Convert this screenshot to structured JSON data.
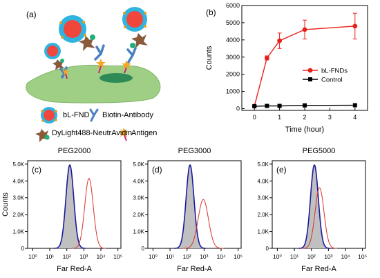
{
  "panel_labels": {
    "a": "(a)",
    "b": "(b)",
    "c": "(c)",
    "d": "(d)",
    "e": "(e)"
  },
  "legend_a": {
    "bl_fnd": "bL-FND",
    "biotin_antibody": "Biotin-Antibody",
    "dylight": "DyLight488-NeutrAvidin",
    "antigen": "Antigen"
  },
  "colors": {
    "fnd_red": "#f0463c",
    "fnd_shell": "#2fb4e0",
    "antibody_blue": "#4a7fc0",
    "avidin_brown": "#8a5a3a",
    "dye_green": "#1fb07a",
    "antigen_orange": "#f5a623",
    "cell_green": "#9fcf85",
    "nucleus": "#2e8b57",
    "series_red": "#e8201a",
    "control_black": "#000000",
    "hist_blue": "#1a1aa0",
    "hist_red": "#d9302a",
    "hist_fill": "#c0c0c0"
  },
  "chart_data": [
    {
      "panel": "(b)",
      "type": "line",
      "xlabel": "Time (hour)",
      "ylabel": "Counts",
      "xlim": [
        -0.5,
        4.5
      ],
      "ylim": [
        -100,
        6000
      ],
      "xticks": [
        "0",
        "1",
        "2",
        "3",
        "4"
      ],
      "yticks": [
        "0",
        "1000",
        "2000",
        "3000",
        "4000",
        "5000",
        "6000"
      ],
      "legend_position": "center-right",
      "series": [
        {
          "name": "bL-FNDs",
          "marker": "circle",
          "color": "#e8201a",
          "x": [
            0,
            0.5,
            1,
            2,
            4
          ],
          "y": [
            150,
            2950,
            3950,
            4600,
            4800
          ],
          "err": [
            30,
            120,
            450,
            550,
            750
          ]
        },
        {
          "name": "Control",
          "marker": "square",
          "color": "#000000",
          "x": [
            0,
            0.5,
            1,
            2,
            4
          ],
          "y": [
            140,
            160,
            160,
            190,
            200
          ],
          "err": [
            10,
            10,
            10,
            10,
            10
          ]
        }
      ]
    },
    {
      "panel": "(c)",
      "type": "area",
      "title": "PEG2000",
      "xlabel": "Far Red-A",
      "ylabel": "Counts",
      "xscale": "log",
      "xlim": [
        0.5,
        150000
      ],
      "ylim": [
        0,
        5200
      ],
      "xticks": [
        "10⁰",
        "10¹",
        "10²",
        "10³",
        "10⁴",
        "10⁵"
      ],
      "yticks": [
        "0",
        "1.0K",
        "2.0K",
        "3.0K",
        "4.0K",
        "5.0K"
      ],
      "series": [
        {
          "name": "",
          "role": "control",
          "peak_x": 150,
          "peak_y": 4950,
          "width_decades": 0.23
        },
        {
          "name": "",
          "role": "sample",
          "peak_x": 2000,
          "peak_y": 4150,
          "width_decades": 0.25
        }
      ]
    },
    {
      "panel": "(d)",
      "type": "area",
      "title": "PEG3000",
      "xlabel": "Far Red-A",
      "xscale": "log",
      "xlim": [
        0.5,
        150000
      ],
      "ylim": [
        0,
        5200
      ],
      "xticks": [
        "10⁰",
        "10¹",
        "10²",
        "10³",
        "10⁴",
        "10⁵"
      ],
      "yticks": [
        "0",
        "1.0K",
        "2.0K",
        "3.0K",
        "4.0K",
        "5.0K"
      ],
      "series": [
        {
          "name": "",
          "role": "control",
          "peak_x": 150,
          "peak_y": 4950,
          "width_decades": 0.23
        },
        {
          "name": "",
          "role": "sample",
          "peak_x": 900,
          "peak_y": 2900,
          "width_decades": 0.3
        }
      ]
    },
    {
      "panel": "(e)",
      "type": "area",
      "title": "PEG5000",
      "xlabel": "Far Red-A",
      "xscale": "log",
      "xlim": [
        0.5,
        150000
      ],
      "ylim": [
        0,
        5200
      ],
      "xticks": [
        "10⁰",
        "10¹",
        "10²",
        "10³",
        "10⁴",
        "10⁵"
      ],
      "yticks": [
        "0",
        "1.0K",
        "2.0K",
        "3.0K",
        "4.0K",
        "5.0K"
      ],
      "series": [
        {
          "name": "",
          "role": "control",
          "peak_x": 150,
          "peak_y": 4950,
          "width_decades": 0.23
        },
        {
          "name": "",
          "role": "sample",
          "peak_x": 300,
          "peak_y": 3600,
          "width_decades": 0.26
        }
      ]
    }
  ]
}
